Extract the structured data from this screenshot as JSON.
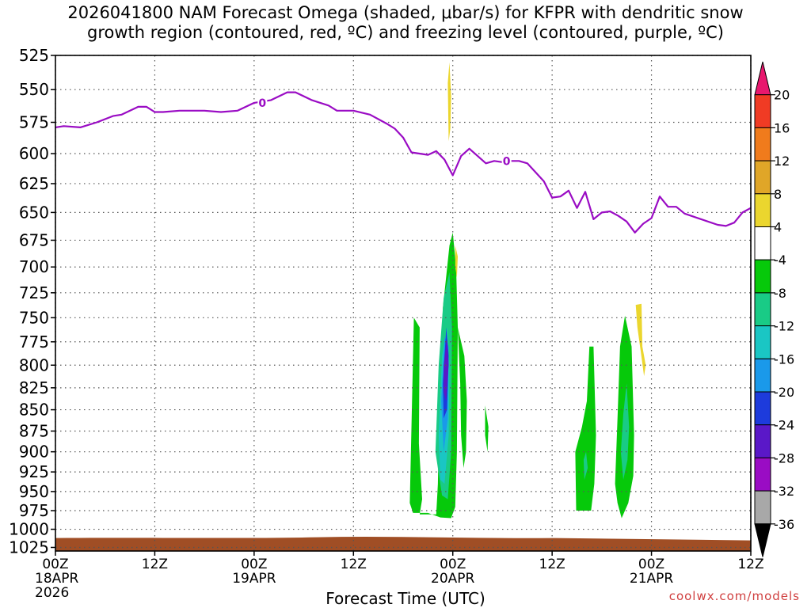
{
  "chart_data": {
    "type": "heatmap",
    "title_line1": "2026041800 NAM Forecast Omega (shaded, μbar/s) for KFPR with dendritic snow",
    "title_line2": "growth region (contoured, red, ºC) and freezing level (contoured, purple, ºC)",
    "xlabel": "Forecast Time (UTC)",
    "credit": "coolwx.com/models",
    "y_axis": {
      "label": "",
      "log_scale": true,
      "ticks": [
        525,
        550,
        575,
        600,
        625,
        650,
        675,
        700,
        725,
        750,
        775,
        800,
        825,
        850,
        875,
        900,
        925,
        950,
        975,
        1000,
        1025
      ],
      "ylim": [
        525,
        1030
      ]
    },
    "x_axis": {
      "range_hours": [
        0,
        84
      ],
      "ticks": [
        {
          "h": 0,
          "label": "00Z",
          "sub1": "18APR",
          "sub2": "2026"
        },
        {
          "h": 12,
          "label": "12Z",
          "sub1": "",
          "sub2": ""
        },
        {
          "h": 24,
          "label": "00Z",
          "sub1": "19APR",
          "sub2": ""
        },
        {
          "h": 36,
          "label": "12Z",
          "sub1": "",
          "sub2": ""
        },
        {
          "h": 48,
          "label": "00Z",
          "sub1": "20APR",
          "sub2": ""
        },
        {
          "h": 60,
          "label": "12Z",
          "sub1": "",
          "sub2": ""
        },
        {
          "h": 72,
          "label": "00Z",
          "sub1": "21APR",
          "sub2": ""
        },
        {
          "h": 84,
          "label": "12Z",
          "sub1": "",
          "sub2": ""
        }
      ]
    },
    "grid": true,
    "colorbar": {
      "levels": [
        "20",
        "16",
        "12",
        "8",
        "4",
        "-4",
        "-8",
        "-12",
        "-16",
        "-20",
        "-24",
        "-28",
        "-32",
        "-36"
      ],
      "colors": [
        "#e8186e",
        "#f03b24",
        "#f07b1c",
        "#e0a628",
        "#ebd62e",
        "#ffffff",
        "#06c90a",
        "#19cb86",
        "#1ac6c4",
        "#1a99ea",
        "#1d3bdc",
        "#5a18c8",
        "#9a0cc4",
        "#a8a8a8",
        "#000000"
      ]
    },
    "freezing_level": {
      "name": "0",
      "color": "#9a0cc4",
      "points": [
        [
          0,
          579
        ],
        [
          1,
          578
        ],
        [
          3,
          579
        ],
        [
          5,
          575
        ],
        [
          7,
          570
        ],
        [
          8,
          569
        ],
        [
          10,
          563
        ],
        [
          11,
          563
        ],
        [
          12,
          567
        ],
        [
          13,
          567
        ],
        [
          15,
          566
        ],
        [
          18,
          566
        ],
        [
          20,
          567
        ],
        [
          22,
          566
        ],
        [
          24,
          560
        ],
        [
          26,
          558
        ],
        [
          28,
          552
        ],
        [
          29,
          552
        ],
        [
          31,
          558
        ],
        [
          33,
          562
        ],
        [
          34,
          566
        ],
        [
          36,
          566
        ],
        [
          38,
          569
        ],
        [
          40,
          576
        ],
        [
          41,
          580
        ],
        [
          42,
          587
        ],
        [
          43,
          599
        ],
        [
          45,
          601
        ],
        [
          46,
          598
        ],
        [
          47,
          605
        ],
        [
          48,
          618
        ],
        [
          49,
          602
        ],
        [
          50,
          596
        ],
        [
          51,
          602
        ],
        [
          52,
          608
        ],
        [
          53,
          606
        ],
        [
          54,
          607
        ],
        [
          55,
          606
        ],
        [
          56,
          606
        ],
        [
          57,
          608
        ],
        [
          59,
          623
        ],
        [
          60,
          637
        ],
        [
          61,
          636
        ],
        [
          62,
          631
        ],
        [
          63,
          646
        ],
        [
          64,
          632
        ],
        [
          65,
          656
        ],
        [
          66,
          650
        ],
        [
          67,
          649
        ],
        [
          68,
          653
        ],
        [
          69,
          658
        ],
        [
          70,
          668
        ],
        [
          71,
          660
        ],
        [
          72,
          655
        ],
        [
          73,
          636
        ],
        [
          74,
          645
        ],
        [
          75,
          645
        ],
        [
          76,
          651
        ],
        [
          78,
          656
        ],
        [
          80,
          661
        ],
        [
          81,
          662
        ],
        [
          82,
          659
        ],
        [
          83,
          650
        ],
        [
          84,
          646
        ]
      ]
    },
    "contours": [
      {
        "level": "-4",
        "color": "#06c90a",
        "points": [
          [
            42.8,
            965
          ],
          [
            43.3,
            750
          ],
          [
            44.0,
            760
          ],
          [
            43.9,
            890
          ],
          [
            44.3,
            960
          ],
          [
            44.0,
            980
          ],
          [
            46.0,
            980
          ],
          [
            46.2,
            940
          ],
          [
            46.3,
            880
          ],
          [
            46.8,
            740
          ],
          [
            47.6,
            680
          ],
          [
            48.0,
            668
          ],
          [
            48.4,
            700
          ],
          [
            48.6,
            760
          ],
          [
            48.5,
            900
          ],
          [
            48.3,
            970
          ],
          [
            47.8,
            985
          ],
          [
            46.5,
            984
          ],
          [
            45.0,
            978
          ],
          [
            43.2,
            978
          ]
        ]
      },
      {
        "level": "-4",
        "color": "#06c90a",
        "points": [
          [
            48.6,
            760
          ],
          [
            49.4,
            790
          ],
          [
            49.7,
            840
          ],
          [
            49.6,
            900
          ],
          [
            49.3,
            920
          ],
          [
            49.0,
            880
          ],
          [
            48.9,
            820
          ]
        ]
      },
      {
        "level": "-4",
        "color": "#06c90a",
        "points": [
          [
            51.9,
            845
          ],
          [
            52.3,
            870
          ],
          [
            52.2,
            900
          ],
          [
            51.9,
            880
          ]
        ]
      },
      {
        "level": "-4",
        "color": "#06c90a",
        "points": [
          [
            62.9,
            975
          ],
          [
            62.8,
            900
          ],
          [
            63.6,
            870
          ],
          [
            64.2,
            840
          ],
          [
            64.5,
            780
          ],
          [
            65.0,
            780
          ],
          [
            65.3,
            880
          ],
          [
            65.1,
            940
          ],
          [
            64.7,
            975
          ]
        ]
      },
      {
        "level": "-4",
        "color": "#06c90a",
        "points": [
          [
            67.6,
            940
          ],
          [
            67.9,
            860
          ],
          [
            68.2,
            780
          ],
          [
            68.8,
            748
          ],
          [
            69.6,
            780
          ],
          [
            69.9,
            880
          ],
          [
            69.8,
            930
          ],
          [
            69.2,
            965
          ],
          [
            68.4,
            985
          ],
          [
            67.9,
            965
          ]
        ]
      },
      {
        "level": "-8",
        "color": "#19cb86",
        "points": [
          [
            45.9,
            900
          ],
          [
            46.3,
            800
          ],
          [
            46.9,
            730
          ],
          [
            47.6,
            705
          ],
          [
            47.9,
            760
          ],
          [
            47.8,
            900
          ],
          [
            47.4,
            960
          ],
          [
            46.7,
            955
          ]
        ]
      },
      {
        "level": "-8",
        "color": "#19cb86",
        "points": [
          [
            63.8,
            910
          ],
          [
            64.1,
            900
          ],
          [
            64.3,
            920
          ],
          [
            63.9,
            935
          ]
        ]
      },
      {
        "level": "-8",
        "color": "#19cb86",
        "points": [
          [
            68.6,
            855
          ],
          [
            69.0,
            820
          ],
          [
            69.3,
            870
          ],
          [
            69.1,
            910
          ],
          [
            68.6,
            935
          ],
          [
            68.3,
            900
          ]
        ]
      },
      {
        "level": "-12",
        "color": "#1ac6c4",
        "points": [
          [
            46.3,
            880
          ],
          [
            46.7,
            790
          ],
          [
            47.3,
            760
          ],
          [
            47.6,
            800
          ],
          [
            47.5,
            880
          ],
          [
            47.0,
            940
          ],
          [
            46.5,
            935
          ]
        ]
      },
      {
        "level": "-16",
        "color": "#1a99ea",
        "points": [
          [
            46.6,
            840
          ],
          [
            47.0,
            770
          ],
          [
            47.5,
            780
          ],
          [
            47.4,
            860
          ],
          [
            46.9,
            900
          ]
        ]
      },
      {
        "level": "-20",
        "color": "#1d3bdc",
        "points": [
          [
            46.8,
            820
          ],
          [
            47.2,
            760
          ],
          [
            47.5,
            790
          ],
          [
            47.3,
            850
          ],
          [
            46.9,
            860
          ]
        ]
      },
      {
        "level": "-28",
        "color": "#5a18c8",
        "points": [
          [
            46.9,
            800
          ],
          [
            47.3,
            770
          ],
          [
            47.5,
            800
          ],
          [
            47.2,
            840
          ],
          [
            46.9,
            830
          ]
        ]
      },
      {
        "level": "8",
        "color": "#ebd62e",
        "points": [
          [
            47.4,
            545
          ],
          [
            47.6,
            530
          ],
          [
            47.8,
            555
          ],
          [
            47.7,
            580
          ],
          [
            47.5,
            590
          ]
        ]
      },
      {
        "level": "8",
        "color": "#ebd62e",
        "points": [
          [
            48.3,
            680
          ],
          [
            48.6,
            690
          ],
          [
            48.5,
            710
          ],
          [
            48.3,
            700
          ]
        ]
      },
      {
        "level": "8",
        "color": "#ebd62e",
        "points": [
          [
            70.1,
            737
          ],
          [
            70.8,
            736
          ],
          [
            70.9,
            780
          ],
          [
            71.3,
            800
          ],
          [
            71.1,
            812
          ],
          [
            70.7,
            785
          ],
          [
            70.3,
            760
          ]
        ]
      }
    ],
    "ground": {
      "color": "#a04e25",
      "top_pressure": 1012
    }
  }
}
